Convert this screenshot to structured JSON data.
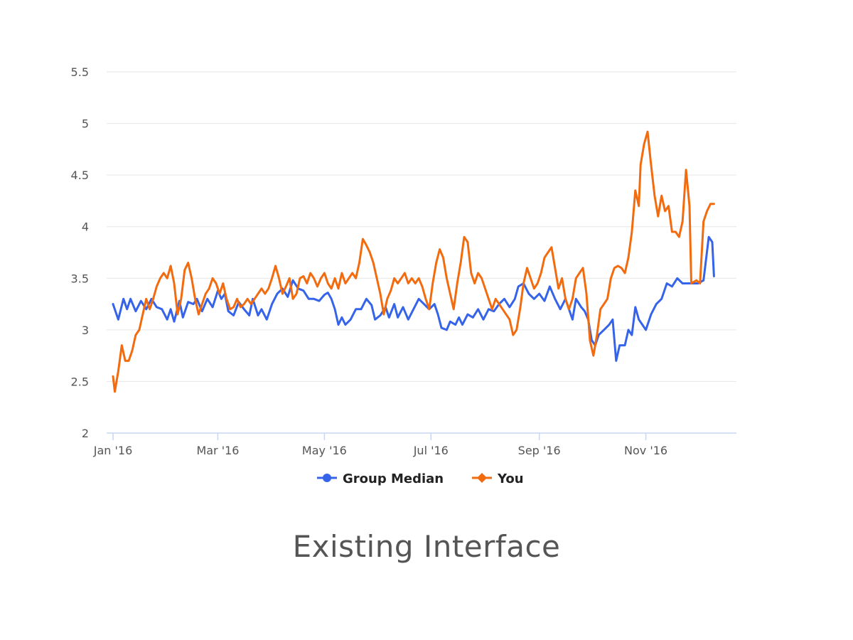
{
  "caption": "Existing Interface",
  "colors": {
    "group_median": "#3563e9",
    "you": "#f26b0f",
    "grid": "#e6e6e6",
    "axis": "#c9d6f0"
  },
  "chart_data": {
    "type": "line",
    "title": "",
    "xlabel": "",
    "ylabel": "",
    "ylim": [
      2,
      5.5
    ],
    "yticks": [
      "2",
      "2.5",
      "3",
      "3.5",
      "4",
      "4.5",
      "5",
      "5.5"
    ],
    "x_start": "2016-01-01",
    "x_end": "2016-12-20",
    "xticks": [
      {
        "label": "Jan '16",
        "date": "2016-01-01"
      },
      {
        "label": "Mar '16",
        "date": "2016-03-01"
      },
      {
        "label": "May '16",
        "date": "2016-05-01"
      },
      {
        "label": "Jul '16",
        "date": "2016-07-01"
      },
      {
        "label": "Sep '16",
        "date": "2016-09-01"
      },
      {
        "label": "Nov '16",
        "date": "2016-11-01"
      }
    ],
    "legend_position": "bottom-center",
    "series": [
      {
        "name": "Group Median",
        "key": "group_median",
        "points": [
          [
            0,
            3.25
          ],
          [
            3,
            3.1
          ],
          [
            6,
            3.3
          ],
          [
            8,
            3.2
          ],
          [
            10,
            3.3
          ],
          [
            13,
            3.18
          ],
          [
            16,
            3.28
          ],
          [
            19,
            3.2
          ],
          [
            22,
            3.3
          ],
          [
            25,
            3.22
          ],
          [
            28,
            3.2
          ],
          [
            31,
            3.1
          ],
          [
            33,
            3.2
          ],
          [
            35,
            3.08
          ],
          [
            38,
            3.28
          ],
          [
            40,
            3.12
          ],
          [
            43,
            3.27
          ],
          [
            46,
            3.25
          ],
          [
            48,
            3.3
          ],
          [
            51,
            3.18
          ],
          [
            54,
            3.3
          ],
          [
            57,
            3.22
          ],
          [
            60,
            3.38
          ],
          [
            62,
            3.3
          ],
          [
            64,
            3.35
          ],
          [
            66,
            3.18
          ],
          [
            69,
            3.14
          ],
          [
            72,
            3.27
          ],
          [
            75,
            3.2
          ],
          [
            78,
            3.14
          ],
          [
            80,
            3.3
          ],
          [
            83,
            3.14
          ],
          [
            85,
            3.2
          ],
          [
            88,
            3.1
          ],
          [
            91,
            3.25
          ],
          [
            94,
            3.35
          ],
          [
            97,
            3.4
          ],
          [
            100,
            3.32
          ],
          [
            103,
            3.48
          ],
          [
            106,
            3.4
          ],
          [
            109,
            3.38
          ],
          [
            112,
            3.3
          ],
          [
            115,
            3.3
          ],
          [
            118,
            3.28
          ],
          [
            121,
            3.34
          ],
          [
            123,
            3.36
          ],
          [
            125,
            3.3
          ],
          [
            127,
            3.2
          ],
          [
            129,
            3.05
          ],
          [
            131,
            3.12
          ],
          [
            133,
            3.05
          ],
          [
            136,
            3.1
          ],
          [
            139,
            3.2
          ],
          [
            142,
            3.2
          ],
          [
            145,
            3.3
          ],
          [
            148,
            3.24
          ],
          [
            150,
            3.1
          ],
          [
            153,
            3.14
          ],
          [
            156,
            3.22
          ],
          [
            158,
            3.12
          ],
          [
            161,
            3.25
          ],
          [
            163,
            3.12
          ],
          [
            166,
            3.22
          ],
          [
            169,
            3.1
          ],
          [
            172,
            3.2
          ],
          [
            175,
            3.3
          ],
          [
            178,
            3.25
          ],
          [
            181,
            3.2
          ],
          [
            184,
            3.25
          ],
          [
            186,
            3.15
          ],
          [
            188,
            3.02
          ],
          [
            191,
            3.0
          ],
          [
            193,
            3.08
          ],
          [
            196,
            3.05
          ],
          [
            198,
            3.12
          ],
          [
            200,
            3.05
          ],
          [
            203,
            3.15
          ],
          [
            206,
            3.12
          ],
          [
            209,
            3.2
          ],
          [
            212,
            3.1
          ],
          [
            215,
            3.2
          ],
          [
            218,
            3.18
          ],
          [
            221,
            3.25
          ],
          [
            224,
            3.3
          ],
          [
            227,
            3.22
          ],
          [
            230,
            3.3
          ],
          [
            232,
            3.42
          ],
          [
            235,
            3.45
          ],
          [
            238,
            3.35
          ],
          [
            241,
            3.3
          ],
          [
            244,
            3.35
          ],
          [
            247,
            3.28
          ],
          [
            250,
            3.42
          ],
          [
            253,
            3.3
          ],
          [
            256,
            3.2
          ],
          [
            259,
            3.3
          ],
          [
            261,
            3.2
          ],
          [
            263,
            3.1
          ],
          [
            265,
            3.3
          ],
          [
            268,
            3.22
          ],
          [
            270,
            3.18
          ],
          [
            272,
            3.1
          ],
          [
            274,
            2.9
          ],
          [
            276,
            2.85
          ],
          [
            278,
            2.95
          ],
          [
            281,
            3.0
          ],
          [
            284,
            3.05
          ],
          [
            286,
            3.1
          ],
          [
            288,
            2.7
          ],
          [
            290,
            2.85
          ],
          [
            293,
            2.85
          ],
          [
            295,
            3.0
          ],
          [
            297,
            2.95
          ],
          [
            299,
            3.22
          ],
          [
            301,
            3.1
          ],
          [
            303,
            3.05
          ],
          [
            305,
            3.0
          ],
          [
            308,
            3.15
          ],
          [
            311,
            3.25
          ],
          [
            314,
            3.3
          ],
          [
            317,
            3.45
          ],
          [
            320,
            3.42
          ],
          [
            323,
            3.5
          ],
          [
            326,
            3.45
          ],
          [
            329,
            3.45
          ],
          [
            332,
            3.45
          ],
          [
            335,
            3.45
          ],
          [
            338,
            3.48
          ],
          [
            341,
            3.9
          ],
          [
            343,
            3.85
          ],
          [
            344,
            3.52
          ]
        ]
      },
      {
        "name": "You",
        "key": "you",
        "points": [
          [
            0,
            2.55
          ],
          [
            1,
            2.4
          ],
          [
            3,
            2.6
          ],
          [
            5,
            2.85
          ],
          [
            7,
            2.7
          ],
          [
            9,
            2.7
          ],
          [
            11,
            2.8
          ],
          [
            13,
            2.95
          ],
          [
            15,
            3.0
          ],
          [
            17,
            3.15
          ],
          [
            19,
            3.3
          ],
          [
            21,
            3.2
          ],
          [
            23,
            3.3
          ],
          [
            25,
            3.42
          ],
          [
            27,
            3.5
          ],
          [
            29,
            3.55
          ],
          [
            31,
            3.5
          ],
          [
            33,
            3.62
          ],
          [
            35,
            3.45
          ],
          [
            37,
            3.15
          ],
          [
            39,
            3.3
          ],
          [
            41,
            3.58
          ],
          [
            43,
            3.65
          ],
          [
            45,
            3.5
          ],
          [
            47,
            3.3
          ],
          [
            49,
            3.15
          ],
          [
            51,
            3.25
          ],
          [
            53,
            3.35
          ],
          [
            55,
            3.4
          ],
          [
            57,
            3.5
          ],
          [
            59,
            3.45
          ],
          [
            61,
            3.35
          ],
          [
            63,
            3.45
          ],
          [
            65,
            3.3
          ],
          [
            67,
            3.2
          ],
          [
            69,
            3.22
          ],
          [
            71,
            3.3
          ],
          [
            73,
            3.22
          ],
          [
            75,
            3.25
          ],
          [
            77,
            3.3
          ],
          [
            79,
            3.25
          ],
          [
            81,
            3.3
          ],
          [
            83,
            3.35
          ],
          [
            85,
            3.4
          ],
          [
            87,
            3.35
          ],
          [
            89,
            3.4
          ],
          [
            91,
            3.5
          ],
          [
            93,
            3.62
          ],
          [
            95,
            3.5
          ],
          [
            97,
            3.35
          ],
          [
            99,
            3.42
          ],
          [
            101,
            3.5
          ],
          [
            103,
            3.3
          ],
          [
            105,
            3.35
          ],
          [
            107,
            3.5
          ],
          [
            109,
            3.52
          ],
          [
            111,
            3.45
          ],
          [
            113,
            3.55
          ],
          [
            115,
            3.5
          ],
          [
            117,
            3.42
          ],
          [
            119,
            3.5
          ],
          [
            121,
            3.55
          ],
          [
            123,
            3.45
          ],
          [
            125,
            3.4
          ],
          [
            127,
            3.5
          ],
          [
            129,
            3.4
          ],
          [
            131,
            3.55
          ],
          [
            133,
            3.45
          ],
          [
            135,
            3.5
          ],
          [
            137,
            3.55
          ],
          [
            139,
            3.5
          ],
          [
            141,
            3.65
          ],
          [
            143,
            3.88
          ],
          [
            145,
            3.82
          ],
          [
            147,
            3.75
          ],
          [
            149,
            3.65
          ],
          [
            151,
            3.5
          ],
          [
            153,
            3.35
          ],
          [
            155,
            3.15
          ],
          [
            157,
            3.3
          ],
          [
            159,
            3.38
          ],
          [
            161,
            3.5
          ],
          [
            163,
            3.45
          ],
          [
            165,
            3.5
          ],
          [
            167,
            3.55
          ],
          [
            169,
            3.45
          ],
          [
            171,
            3.5
          ],
          [
            173,
            3.45
          ],
          [
            175,
            3.5
          ],
          [
            177,
            3.42
          ],
          [
            179,
            3.3
          ],
          [
            181,
            3.2
          ],
          [
            183,
            3.45
          ],
          [
            185,
            3.65
          ],
          [
            187,
            3.78
          ],
          [
            189,
            3.7
          ],
          [
            191,
            3.5
          ],
          [
            193,
            3.35
          ],
          [
            195,
            3.2
          ],
          [
            197,
            3.45
          ],
          [
            199,
            3.65
          ],
          [
            201,
            3.9
          ],
          [
            203,
            3.85
          ],
          [
            205,
            3.55
          ],
          [
            207,
            3.45
          ],
          [
            209,
            3.55
          ],
          [
            211,
            3.5
          ],
          [
            213,
            3.4
          ],
          [
            215,
            3.3
          ],
          [
            217,
            3.2
          ],
          [
            219,
            3.3
          ],
          [
            221,
            3.25
          ],
          [
            223,
            3.2
          ],
          [
            225,
            3.15
          ],
          [
            227,
            3.1
          ],
          [
            229,
            2.95
          ],
          [
            231,
            3.0
          ],
          [
            233,
            3.2
          ],
          [
            235,
            3.45
          ],
          [
            237,
            3.6
          ],
          [
            239,
            3.5
          ],
          [
            241,
            3.4
          ],
          [
            243,
            3.45
          ],
          [
            245,
            3.55
          ],
          [
            247,
            3.7
          ],
          [
            249,
            3.75
          ],
          [
            251,
            3.8
          ],
          [
            253,
            3.6
          ],
          [
            255,
            3.4
          ],
          [
            257,
            3.5
          ],
          [
            259,
            3.3
          ],
          [
            261,
            3.2
          ],
          [
            263,
            3.3
          ],
          [
            265,
            3.5
          ],
          [
            267,
            3.55
          ],
          [
            269,
            3.6
          ],
          [
            271,
            3.35
          ],
          [
            273,
            2.9
          ],
          [
            275,
            2.75
          ],
          [
            277,
            2.95
          ],
          [
            279,
            3.2
          ],
          [
            281,
            3.25
          ],
          [
            283,
            3.3
          ],
          [
            285,
            3.5
          ],
          [
            287,
            3.6
          ],
          [
            289,
            3.62
          ],
          [
            291,
            3.6
          ],
          [
            293,
            3.55
          ],
          [
            295,
            3.7
          ],
          [
            297,
            3.95
          ],
          [
            299,
            4.35
          ],
          [
            301,
            4.2
          ],
          [
            302,
            4.6
          ],
          [
            304,
            4.8
          ],
          [
            306,
            4.92
          ],
          [
            308,
            4.6
          ],
          [
            310,
            4.3
          ],
          [
            312,
            4.1
          ],
          [
            314,
            4.3
          ],
          [
            316,
            4.15
          ],
          [
            318,
            4.2
          ],
          [
            320,
            3.95
          ],
          [
            322,
            3.95
          ],
          [
            324,
            3.9
          ],
          [
            326,
            4.05
          ],
          [
            328,
            4.55
          ],
          [
            330,
            4.2
          ],
          [
            331,
            3.45
          ],
          [
            334,
            3.48
          ],
          [
            336,
            3.45
          ],
          [
            338,
            4.05
          ],
          [
            340,
            4.15
          ],
          [
            342,
            4.22
          ],
          [
            344,
            4.22
          ]
        ]
      }
    ]
  }
}
